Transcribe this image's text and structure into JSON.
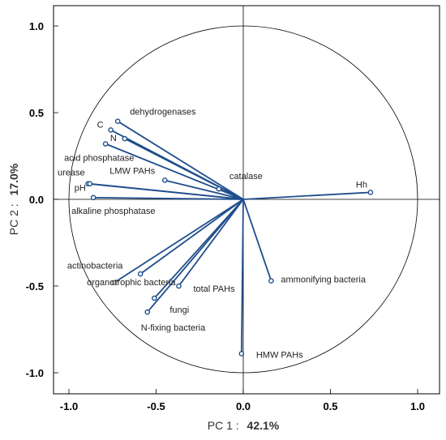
{
  "chart_data": {
    "type": "scatter",
    "subtype": "pca-correlation-circle",
    "title": "",
    "xlabel": "PC 1 :",
    "xlabel_value": "42.1%",
    "ylabel": "PC 2 :",
    "ylabel_value": "17.0%",
    "xlim": [
      -1.05,
      1.05
    ],
    "ylim": [
      -1.05,
      1.05
    ],
    "x_ticks": [
      -1.0,
      -0.5,
      0.0,
      0.5,
      1.0
    ],
    "y_ticks": [
      -1.0,
      -0.5,
      0.0,
      0.5,
      1.0
    ],
    "x_tick_labels": [
      "-1.0",
      "-0.5",
      "0.0",
      "0.5",
      "1.0"
    ],
    "y_tick_labels": [
      "-1.0",
      "-0.5",
      "0.0",
      "0.5",
      "1.0"
    ],
    "unit_circle": true,
    "grid": false,
    "vector_color": "#1f4e8c",
    "points": [
      {
        "label": "dehydrogenases",
        "x": -0.72,
        "y": 0.45
      },
      {
        "label": "C",
        "x": -0.76,
        "y": 0.4
      },
      {
        "label": "N",
        "x": -0.68,
        "y": 0.35
      },
      {
        "label": "acid phosphatase",
        "x": -0.79,
        "y": 0.32
      },
      {
        "label": "urease",
        "x": -0.89,
        "y": 0.09
      },
      {
        "label": "pH",
        "x": -0.88,
        "y": 0.09
      },
      {
        "label": "alkaline phosphatase",
        "x": -0.86,
        "y": 0.01
      },
      {
        "label": "LMW PAHs",
        "x": -0.45,
        "y": 0.11
      },
      {
        "label": "catalase",
        "x": -0.14,
        "y": 0.06
      },
      {
        "label": "Hh",
        "x": 0.73,
        "y": 0.04
      },
      {
        "label": "actinobacteria",
        "x": -0.74,
        "y": -0.48
      },
      {
        "label": "organotrophic bacteria",
        "x": -0.59,
        "y": -0.43
      },
      {
        "label": "total PAHs",
        "x": -0.37,
        "y": -0.5
      },
      {
        "label": "fungi",
        "x": -0.51,
        "y": -0.57
      },
      {
        "label": "N-fixing bacteria",
        "x": -0.55,
        "y": -0.65
      },
      {
        "label": "ammonifying bacteria",
        "x": 0.16,
        "y": -0.47
      },
      {
        "label": "HMW PAHs",
        "x": -0.01,
        "y": -0.89
      }
    ]
  }
}
